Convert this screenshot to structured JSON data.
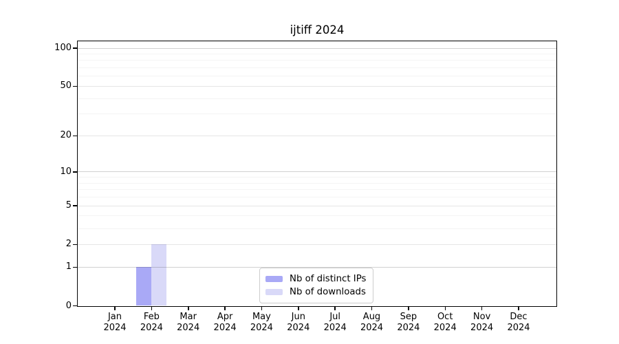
{
  "chart_data": {
    "type": "bar",
    "title": "ijtiff 2024",
    "yscale": "log1p",
    "months": [
      "Jan",
      "Feb",
      "Mar",
      "Apr",
      "May",
      "Jun",
      "Jul",
      "Aug",
      "Sep",
      "Oct",
      "Nov",
      "Dec"
    ],
    "year": "2024",
    "categories": [
      "Jan 2024",
      "Feb 2024",
      "Mar 2024",
      "Apr 2024",
      "May 2024",
      "Jun 2024",
      "Jul 2024",
      "Aug 2024",
      "Sep 2024",
      "Oct 2024",
      "Nov 2024",
      "Dec 2024"
    ],
    "series": [
      {
        "name": "Nb of distinct IPs",
        "color": "#a9a9f6",
        "values": [
          0,
          1,
          0,
          0,
          0,
          0,
          0,
          0,
          0,
          0,
          0,
          0
        ]
      },
      {
        "name": "Nb of downloads",
        "color": "#d9d9f8",
        "values": [
          0,
          2,
          0,
          0,
          0,
          0,
          0,
          0,
          0,
          0,
          0,
          0
        ]
      }
    ],
    "yticks": [
      0,
      1,
      2,
      5,
      10,
      20,
      50,
      100
    ],
    "grid_major": [
      1,
      10,
      100
    ],
    "grid_mid": [
      2,
      5,
      20,
      50
    ],
    "grid_minor": [
      3,
      4,
      6,
      7,
      8,
      9,
      30,
      40,
      60,
      70,
      80,
      90
    ],
    "ylim": [
      0,
      113
    ],
    "grid": "on",
    "legend_position": "bottom-center",
    "xlabel": "",
    "ylabel": ""
  },
  "colors": {
    "spine": "#000000",
    "background": "#ffffff",
    "legend_border": "#cccccc"
  }
}
